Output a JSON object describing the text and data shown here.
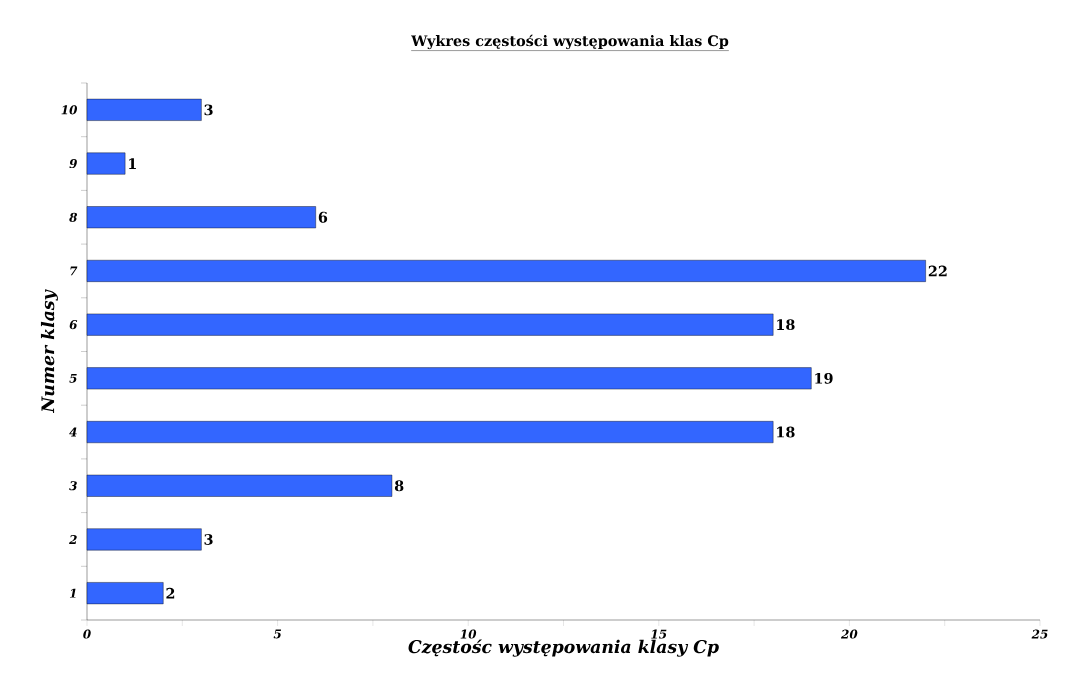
{
  "chart_data": {
    "type": "bar",
    "orientation": "horizontal",
    "title": "Wykres częstości występowania klas Cp",
    "xlabel": "Częstośc występowania klasy Cp",
    "ylabel": "Numer klasy",
    "categories": [
      "10",
      "9",
      "8",
      "7",
      "6",
      "5",
      "4",
      "3",
      "2",
      "1"
    ],
    "values": [
      3,
      1,
      6,
      22,
      18,
      19,
      18,
      8,
      3,
      2
    ],
    "color": "#3366ff",
    "data_labels": true,
    "xlim": [
      0,
      25
    ],
    "xticks": [
      0,
      5,
      10,
      15,
      20,
      25
    ]
  }
}
